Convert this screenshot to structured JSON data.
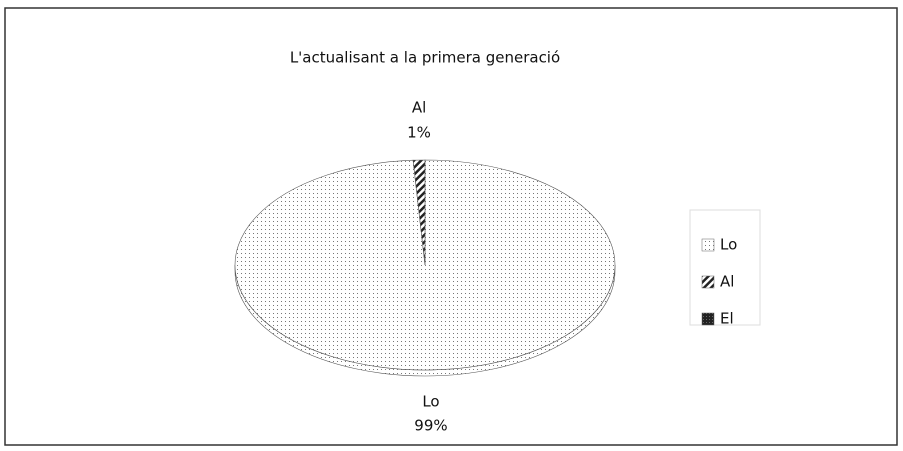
{
  "chart_data": {
    "type": "pie",
    "title": "L'actualisant a la primera generació",
    "categories": [
      "Lo",
      "Al",
      "El"
    ],
    "values": [
      99,
      1,
      0
    ],
    "value_labels": [
      "99%",
      "1%",
      null
    ],
    "legend": "right"
  }
}
